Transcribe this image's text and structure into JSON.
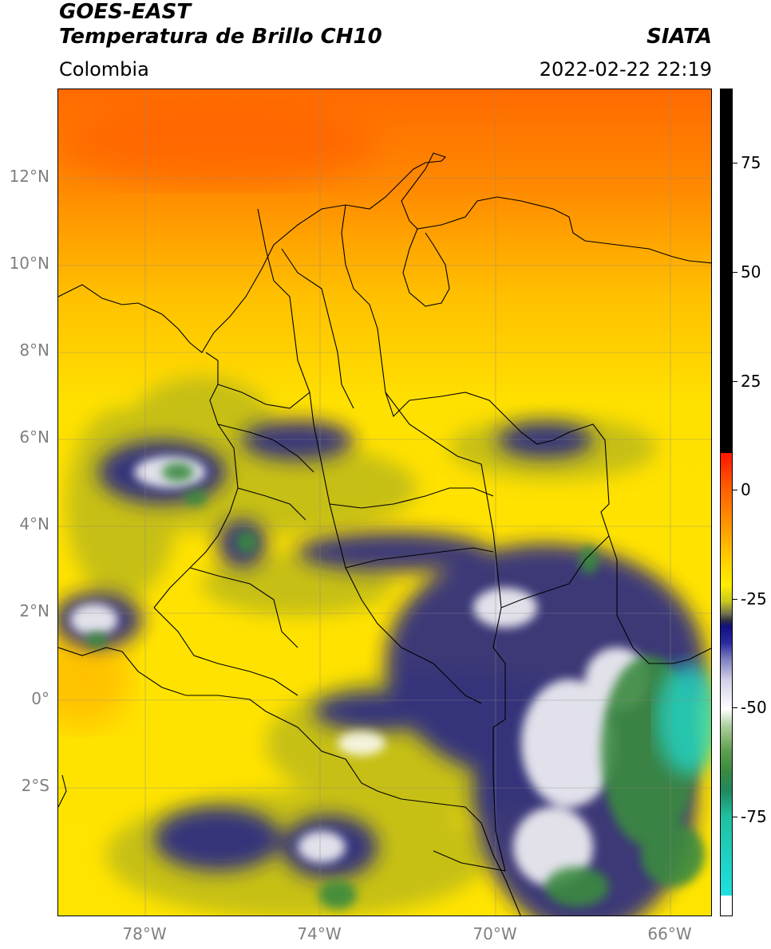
{
  "header": {
    "satellite": "GOES-EAST",
    "product": "Temperatura de Brillo CH10",
    "source": "SIATA",
    "region": "Colombia",
    "timestamp": "2022-02-22 22:19"
  },
  "map": {
    "lat_labels": [
      "12°N",
      "10°N",
      "8°N",
      "6°N",
      "4°N",
      "2°N",
      "0°",
      "2°S"
    ],
    "lon_labels": [
      "78°W",
      "74°W",
      "70°W",
      "66°W"
    ]
  },
  "colorbar": {
    "ticks": [
      "75",
      "50",
      "25",
      "0",
      "-25",
      "-50",
      "-75"
    ],
    "colors": {
      "warm_top": "#ff6a00",
      "warm_mid": "#ffb000",
      "surface": "#ffe100",
      "mid_cloud": "#b4b41e",
      "cold_cloud": "#1a1a8c",
      "very_cold": "#ffffff",
      "deep_convection": "#3a8a40",
      "coldest": "#20d0c0",
      "cap": "#000000"
    }
  }
}
